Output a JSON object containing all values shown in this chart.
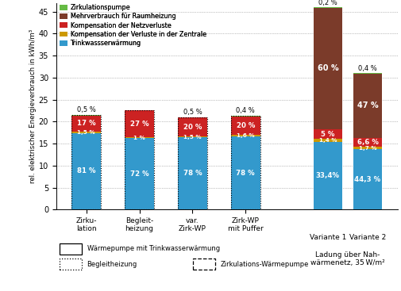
{
  "bar_totals": [
    21.5,
    22.5,
    21.0,
    21.3,
    46.0,
    31.0
  ],
  "segments_pct": {
    "blue": [
      81.0,
      72.0,
      78.0,
      78.0,
      33.4,
      44.3
    ],
    "orange": [
      1.5,
      1.0,
      1.5,
      1.6,
      1.4,
      1.7
    ],
    "red": [
      17.0,
      27.0,
      20.0,
      20.0,
      5.0,
      6.6
    ],
    "brown": [
      0.0,
      0.0,
      0.0,
      0.0,
      60.0,
      47.0
    ],
    "green": [
      0.5,
      0.0,
      0.5,
      0.4,
      0.2,
      0.4
    ]
  },
  "colors": {
    "blue": "#3399CC",
    "orange": "#CC9900",
    "red": "#CC2222",
    "brown": "#7B3B2A",
    "green": "#66BB44"
  },
  "top_labels": [
    "0,5 %",
    "",
    "0,5 %",
    "0,4 %",
    "0,2 %",
    "0,4 %"
  ],
  "blue_labels": [
    "81 %",
    "72 %",
    "78 %",
    "78 %",
    "33,4%",
    "44,3 %"
  ],
  "orange_labels": [
    "1,5 %",
    "1 %",
    "1,5 %",
    "1,6 %",
    "1,4 %",
    "1,7 %"
  ],
  "red_labels": [
    "17 %",
    "27 %",
    "20 %",
    "20 %",
    "5 %",
    "6,6 %"
  ],
  "brown_labels": [
    "",
    "",
    "",
    "",
    "60 %",
    "47 %"
  ],
  "x_positions": [
    0,
    1,
    2,
    3,
    4.55,
    5.3
  ],
  "bar_width": 0.55,
  "ylim": [
    0,
    47
  ],
  "yticks": [
    0,
    5,
    10,
    15,
    20,
    25,
    30,
    35,
    40,
    45
  ],
  "ylabel": "rel. elektrischer Energieverbrauch in kWh/m³",
  "xtick_labels_4": [
    "Zirku-\nlation",
    "Begleit-\nheizung",
    "var.\nZirk-WP",
    "Zirk-WP\nmit Puffer"
  ],
  "group_label_line1": "Ladung über Nah-",
  "group_label_line2": "wärmenetz, 35 W/m²",
  "variante_labels": [
    "Variante 1",
    "Variante 2"
  ],
  "legend_colors_order": [
    "green",
    "brown",
    "red",
    "orange",
    "blue"
  ],
  "legend_texts": [
    "Zirkulationspumpe",
    "Mehrverbrauch für Raumheizung",
    "Kompensation der Netzverluste",
    "Kompensation der Verluste in der Zentrale",
    "Trinkwassserwärmung"
  ],
  "bottom_legend_texts": [
    "Wärmepumpe mit Trinkwasserwärmung",
    "Begleitheizung",
    "Zirkulations-Wärmepumpe"
  ]
}
